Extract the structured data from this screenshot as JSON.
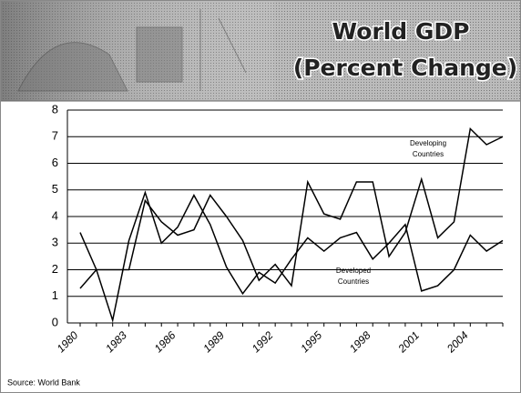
{
  "chart_data": {
    "type": "line",
    "title": [
      "World GDP",
      "(Percent Change)"
    ],
    "source": "Source: World Bank",
    "categories": [
      "1980",
      null,
      null,
      "1983",
      null,
      null,
      "1986",
      null,
      null,
      "1989",
      null,
      null,
      "1992",
      null,
      null,
      "1995",
      null,
      null,
      "1998",
      null,
      null,
      "2001",
      null,
      null,
      "2004",
      null,
      null
    ],
    "series": [
      {
        "name": "Developing Countries",
        "color": "#000000",
        "values": [
          1.3,
          2.0,
          2.0,
          2.0,
          4.6,
          3.8,
          3.3,
          3.5,
          4.8,
          4.0,
          3.1,
          1.6,
          2.2,
          1.4,
          5.3,
          4.1,
          3.9,
          5.3,
          5.3,
          2.5,
          3.4,
          5.4,
          3.2,
          3.8,
          7.3,
          6.7,
          7.0
        ]
      },
      {
        "name": "Developed Countries",
        "color": "#000000",
        "values": [
          3.4,
          2.0,
          0.1,
          3.1,
          4.9,
          3.0,
          3.6,
          4.8,
          3.7,
          2.1,
          1.1,
          1.9,
          1.5,
          2.4,
          3.2,
          2.7,
          3.2,
          3.4,
          2.4,
          3.0,
          3.7,
          1.2,
          1.4,
          2.0,
          3.3,
          2.7,
          3.1
        ]
      }
    ],
    "annotations": [
      [
        "Developing",
        "Countries"
      ],
      [
        "Developed",
        "Countries"
      ]
    ],
    "ylim": [
      0,
      8
    ],
    "yticks": [
      0,
      1,
      2,
      3,
      4,
      5,
      6,
      7,
      8
    ],
    "grid": true
  }
}
